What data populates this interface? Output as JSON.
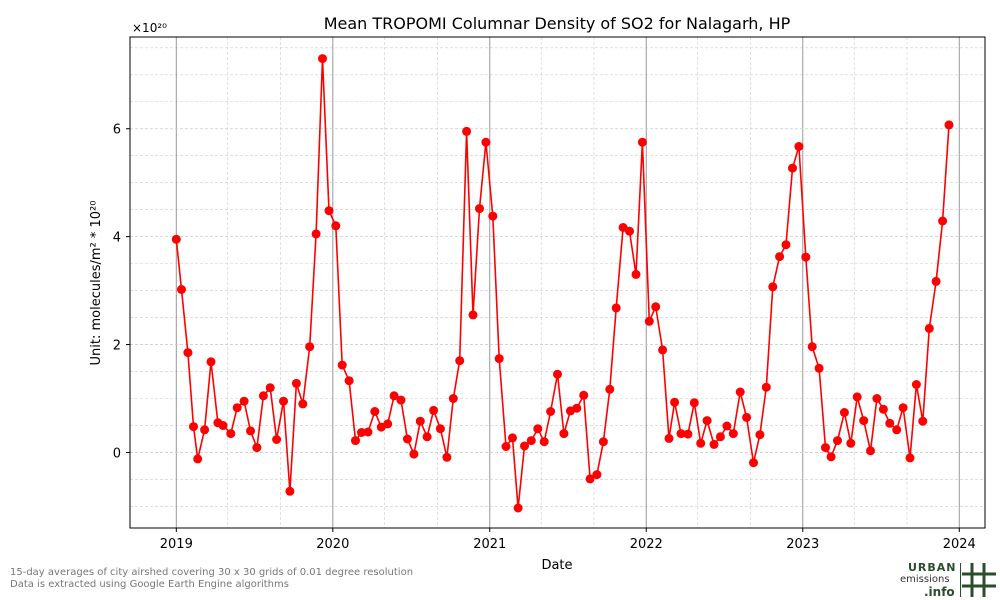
{
  "chart_data": {
    "type": "line",
    "title": "Mean TROPOMI Columnar Density of SO2 for Nalagarh, HP",
    "xlabel": "Date",
    "ylabel": "Unit: molecules/m² * 10²⁰",
    "offset_label": "×10²⁰",
    "xlim": [
      "2018-09-15",
      "2024-03-01"
    ],
    "ylim": [
      -1.4,
      7.7
    ],
    "x_ticks": [
      "2019",
      "2020",
      "2021",
      "2022",
      "2023",
      "2024"
    ],
    "y_ticks": [
      "0",
      "2",
      "4",
      "6"
    ],
    "grid": true,
    "series": [
      {
        "color": "#ff0000",
        "x": [
          "2019-01-01",
          "2019-01-13",
          "2019-01-28",
          "2019-02-10",
          "2019-02-20",
          "2019-03-08",
          "2019-03-23",
          "2019-04-08",
          "2019-04-20",
          "2019-05-08",
          "2019-05-23",
          "2019-06-08",
          "2019-06-23",
          "2019-07-08",
          "2019-07-23",
          "2019-08-08",
          "2019-08-23",
          "2019-09-08",
          "2019-09-23",
          "2019-10-08",
          "2019-10-23",
          "2019-11-08",
          "2019-11-23",
          "2019-12-08",
          "2019-12-23",
          "2020-01-08",
          "2020-01-23",
          "2020-02-08",
          "2020-02-23",
          "2020-03-08",
          "2020-03-23",
          "2020-04-08",
          "2020-04-23",
          "2020-05-08",
          "2020-05-23",
          "2020-06-08",
          "2020-06-23",
          "2020-07-08",
          "2020-07-23",
          "2020-08-08",
          "2020-08-23",
          "2020-09-08",
          "2020-09-23",
          "2020-10-08",
          "2020-10-23",
          "2020-11-08",
          "2020-11-23",
          "2020-12-08",
          "2020-12-23",
          "2021-01-08",
          "2021-01-23",
          "2021-02-08",
          "2021-02-23",
          "2021-03-08",
          "2021-03-23",
          "2021-04-08",
          "2021-04-23",
          "2021-05-08",
          "2021-05-23",
          "2021-06-08",
          "2021-06-23",
          "2021-07-08",
          "2021-07-23",
          "2021-08-08",
          "2021-08-23",
          "2021-09-08",
          "2021-09-23",
          "2021-10-08",
          "2021-10-23",
          "2021-11-08",
          "2021-11-23",
          "2021-12-08",
          "2021-12-23",
          "2022-01-08",
          "2022-01-23",
          "2022-02-08",
          "2022-02-23",
          "2022-03-08",
          "2022-03-23",
          "2022-04-08",
          "2022-04-23",
          "2022-05-08",
          "2022-05-23",
          "2022-06-08",
          "2022-06-23",
          "2022-07-08",
          "2022-07-23",
          "2022-08-08",
          "2022-08-23",
          "2022-09-08",
          "2022-09-23",
          "2022-10-08",
          "2022-10-23",
          "2022-11-08",
          "2022-11-23",
          "2022-12-08",
          "2022-12-23",
          "2023-01-08",
          "2023-01-23",
          "2023-02-08",
          "2023-02-23",
          "2023-03-08",
          "2023-03-23",
          "2023-04-08",
          "2023-04-23",
          "2023-05-08",
          "2023-05-23",
          "2023-06-08",
          "2023-06-23",
          "2023-07-08",
          "2023-07-23",
          "2023-08-08",
          "2023-08-23",
          "2023-09-08",
          "2023-09-23",
          "2023-10-08",
          "2023-10-23",
          "2023-11-08",
          "2023-11-23",
          "2023-12-08"
        ],
        "values": [
          3.95,
          3.02,
          1.85,
          0.48,
          -0.12,
          0.42,
          1.68,
          0.55,
          0.5,
          0.35,
          0.83,
          0.95,
          0.4,
          0.09,
          1.05,
          1.2,
          0.24,
          0.95,
          -0.72,
          1.28,
          0.9,
          1.96,
          4.05,
          7.3,
          4.48,
          4.2,
          1.62,
          1.33,
          0.22,
          0.37,
          0.38,
          0.76,
          0.47,
          0.53,
          1.05,
          0.97,
          0.25,
          -0.03,
          0.58,
          0.29,
          0.78,
          0.44,
          -0.09,
          1.0,
          1.7,
          5.95,
          2.55,
          4.52,
          5.75,
          4.38,
          1.74,
          0.11,
          0.27,
          -1.03,
          0.12,
          0.22,
          0.44,
          0.2,
          0.76,
          1.45,
          0.35,
          0.77,
          0.82,
          1.06,
          -0.49,
          -0.41,
          0.2,
          1.17,
          2.68,
          4.17,
          4.1,
          3.3,
          5.75,
          2.43,
          2.7,
          1.9,
          0.26,
          0.93,
          0.35,
          0.34,
          0.92,
          0.17,
          0.59,
          0.15,
          0.29,
          0.49,
          0.35,
          1.12,
          0.65,
          -0.19,
          0.33,
          1.21,
          3.07,
          3.63,
          3.85,
          5.27,
          5.67,
          3.62,
          1.96,
          1.56,
          0.09,
          -0.08,
          0.22,
          0.74,
          0.17,
          1.03,
          0.59,
          0.03,
          1.0,
          0.8,
          0.54,
          0.42,
          0.83,
          -0.1,
          1.26,
          0.58,
          2.3,
          3.17,
          4.29,
          6.07
        ]
      }
    ]
  },
  "footnotes": [
    "15-day averages of city airshed covering 30 x 30 grids of 0.01 degree resolution",
    "Data is extracted using Google Earth Engine algorithms"
  ],
  "logo": {
    "line1": "URBAN",
    "line2": "emissions",
    "line3": ".info",
    "icon": "hash-grid-icon",
    "color": "#2a4d2a"
  }
}
